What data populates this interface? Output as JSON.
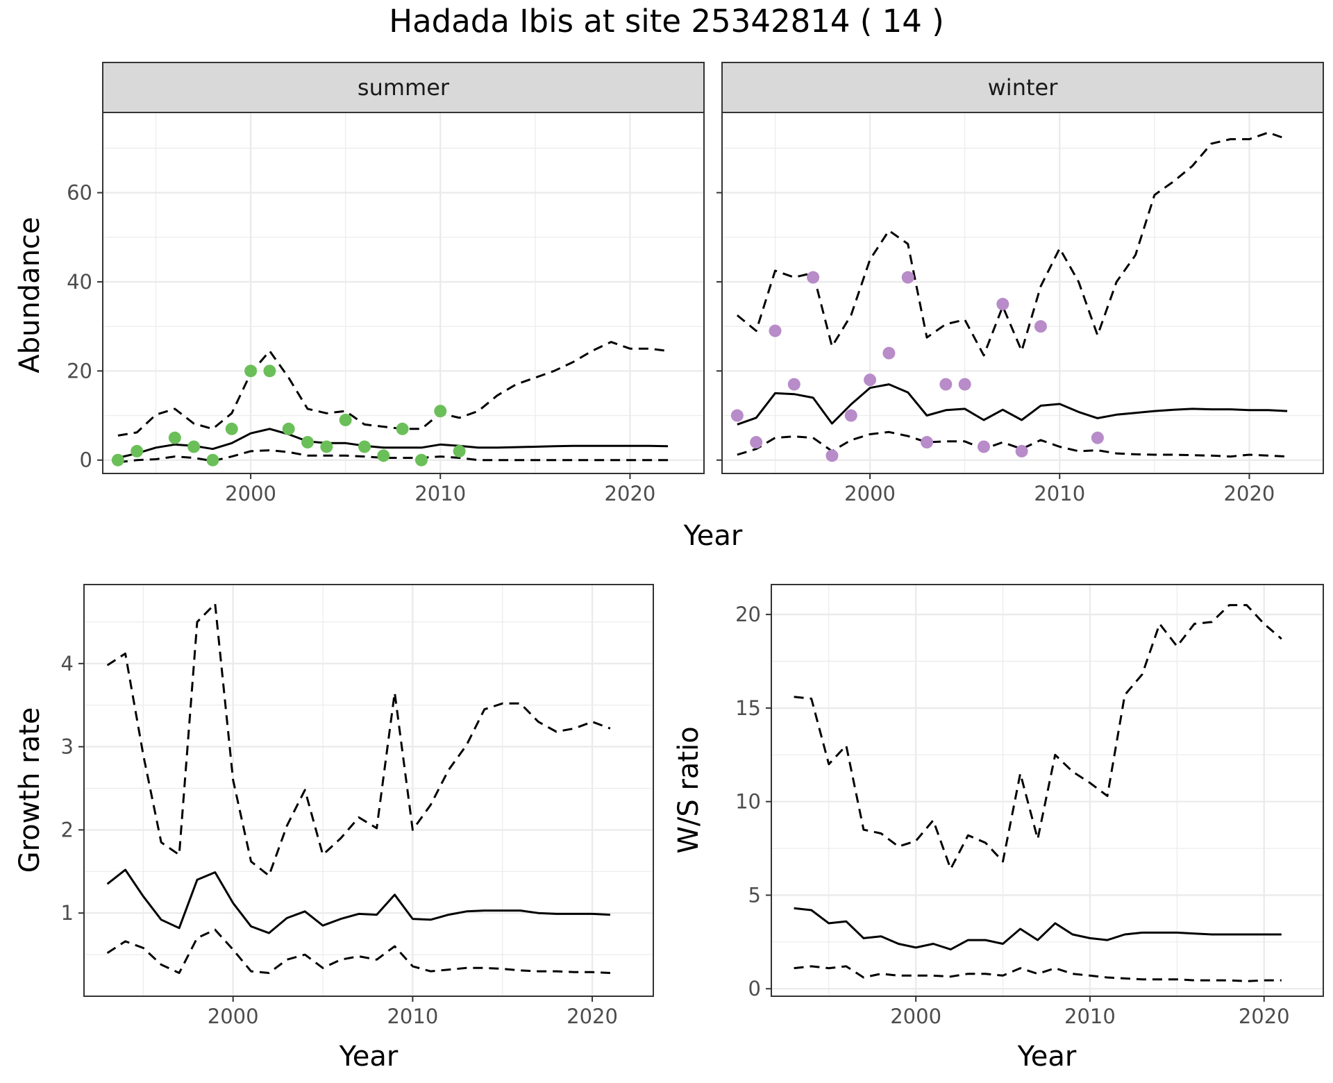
{
  "title": "Hadada Ibis at site 25342814 ( 14 )",
  "colors": {
    "summer_points": "#6BBF59",
    "winter_points": "#B88BC9",
    "line": "#000000",
    "strip_bg": "#D9D9D9",
    "grid": "#EBEBEB"
  },
  "chart_data": [
    {
      "id": "abundance-summer",
      "type": "line",
      "facet": "summer",
      "xlabel": "Year",
      "ylabel": "Abundance",
      "xlim": [
        1992.2,
        2023.9
      ],
      "ylim": [
        -3,
        78
      ],
      "xticks": [
        2000,
        2010,
        2020
      ],
      "yticks": [
        0,
        20,
        40,
        60
      ],
      "grid": true,
      "series": [
        {
          "style": "solid",
          "x": [
            1993,
            1994,
            1995,
            1996,
            1997,
            1998,
            1999,
            2000,
            2001,
            2002,
            2003,
            2004,
            2005,
            2006,
            2007,
            2008,
            2009,
            2010,
            2011,
            2012,
            2013,
            2014,
            2015,
            2016,
            2017,
            2018,
            2019,
            2020,
            2021,
            2022
          ],
          "y": [
            0.5,
            1.5,
            2.8,
            3.5,
            3.2,
            2.5,
            3.8,
            6,
            7,
            5.8,
            4.2,
            3.8,
            3.8,
            3.2,
            2.8,
            2.8,
            2.8,
            3.5,
            3.2,
            2.8,
            2.8,
            2.9,
            3,
            3.1,
            3.2,
            3.2,
            3.2,
            3.2,
            3.2,
            3.1
          ]
        },
        {
          "style": "dashed",
          "x": [
            1993,
            1994,
            1995,
            1996,
            1997,
            1998,
            1999,
            2000,
            2001,
            2002,
            2003,
            2004,
            2005,
            2006,
            2007,
            2008,
            2009,
            2010,
            2011,
            2012,
            2013,
            2014,
            2015,
            2016,
            2017,
            2018,
            2019,
            2020,
            2021,
            2022
          ],
          "y": [
            5.5,
            6.2,
            10.2,
            11.5,
            8.2,
            7,
            10.5,
            19.5,
            24.5,
            18.5,
            11.5,
            10.5,
            11,
            8,
            7.5,
            7,
            7,
            10.5,
            9.5,
            11,
            14.5,
            17,
            18.5,
            20,
            22,
            24.5,
            26.5,
            25,
            25,
            24.5
          ]
        },
        {
          "style": "dashed",
          "x": [
            1993,
            1994,
            1995,
            1996,
            1997,
            1998,
            1999,
            2000,
            2001,
            2002,
            2003,
            2004,
            2005,
            2006,
            2007,
            2008,
            2009,
            2010,
            2011,
            2012,
            2013,
            2014,
            2015,
            2016,
            2017,
            2018,
            2019,
            2020,
            2021,
            2022
          ],
          "y": [
            -0.5,
            0,
            0.2,
            0.8,
            0.5,
            -0.2,
            0.8,
            2,
            2.2,
            1.8,
            1,
            1,
            1,
            0.8,
            0.5,
            0.5,
            0.5,
            0.8,
            0.5,
            0,
            0,
            0,
            0,
            0,
            0,
            0,
            0,
            0,
            0,
            0
          ]
        },
        {
          "style": "points",
          "x": [
            1993,
            1994,
            1996,
            1997,
            1998,
            1999,
            2000,
            2001,
            2002,
            2003,
            2004,
            2005,
            2006,
            2007,
            2008,
            2009,
            2010,
            2011
          ],
          "y": [
            0,
            2,
            5,
            3,
            0,
            7,
            20,
            20,
            7,
            4,
            3,
            9,
            3,
            1,
            7,
            0,
            11,
            2
          ]
        }
      ]
    },
    {
      "id": "abundance-winter",
      "type": "line",
      "facet": "winter",
      "xlabel": "Year",
      "ylabel": "Abundance",
      "xlim": [
        1992.2,
        2023.9
      ],
      "ylim": [
        -3,
        78
      ],
      "xticks": [
        2000,
        2010,
        2020
      ],
      "yticks": [
        0,
        20,
        40,
        60
      ],
      "grid": true,
      "series": [
        {
          "style": "solid",
          "x": [
            1993,
            1994,
            1995,
            1996,
            1997,
            1998,
            1999,
            2000,
            2001,
            2002,
            2003,
            2004,
            2005,
            2006,
            2007,
            2008,
            2009,
            2010,
            2011,
            2012,
            2013,
            2014,
            2015,
            2016,
            2017,
            2018,
            2019,
            2020,
            2021,
            2022
          ],
          "y": [
            8,
            9.5,
            15,
            14.8,
            14,
            8.2,
            12.5,
            16.2,
            17,
            15.2,
            10,
            11.2,
            11.5,
            9,
            11.3,
            9,
            12.2,
            12.6,
            10.8,
            9.4,
            10.2,
            10.6,
            11,
            11.3,
            11.5,
            11.4,
            11.4,
            11.2,
            11.2,
            11
          ]
        },
        {
          "style": "dashed",
          "x": [
            1993,
            1994,
            1995,
            1996,
            1997,
            1998,
            1999,
            2000,
            2001,
            2002,
            2003,
            2004,
            2005,
            2006,
            2007,
            2008,
            2009,
            2010,
            2011,
            2012,
            2013,
            2014,
            2015,
            2016,
            2017,
            2018,
            2019,
            2020,
            2021,
            2022
          ],
          "y": [
            32.5,
            29,
            42.5,
            41,
            42,
            25.5,
            32.5,
            45,
            51.5,
            48.5,
            27.5,
            30.5,
            31.5,
            23.5,
            34.5,
            24.5,
            39,
            47.5,
            40,
            28,
            40,
            46,
            59.5,
            62.5,
            66,
            71,
            72,
            72,
            73.5,
            72
          ]
        },
        {
          "style": "dashed",
          "x": [
            1993,
            1994,
            1995,
            1996,
            1997,
            1998,
            1999,
            2000,
            2001,
            2002,
            2003,
            2004,
            2005,
            2006,
            2007,
            2008,
            2009,
            2010,
            2011,
            2012,
            2013,
            2014,
            2015,
            2016,
            2017,
            2018,
            2019,
            2020,
            2021,
            2022
          ],
          "y": [
            1.2,
            2.5,
            5,
            5.3,
            5,
            2,
            4.5,
            5.8,
            6.3,
            5.4,
            4,
            4.2,
            4.2,
            2.5,
            4,
            2.5,
            4.5,
            3,
            2,
            2.2,
            1.5,
            1.3,
            1.2,
            1.2,
            1.1,
            1,
            0.8,
            1.2,
            1,
            0.8
          ]
        },
        {
          "style": "points",
          "x": [
            1993,
            1994,
            1995,
            1996,
            1997,
            1998,
            1999,
            2000,
            2001,
            2002,
            2003,
            2004,
            2005,
            2006,
            2007,
            2008,
            2009,
            2012
          ],
          "y": [
            10,
            4,
            29,
            17,
            41,
            1,
            10,
            18,
            24,
            41,
            4,
            17,
            17,
            3,
            35,
            2,
            30,
            5
          ]
        }
      ]
    },
    {
      "id": "growth-rate",
      "type": "line",
      "xlabel": "Year",
      "ylabel": "Growth rate",
      "xlim": [
        1991.7,
        2023.4
      ],
      "ylim": [
        0.0,
        4.95
      ],
      "xticks": [
        2000,
        2010,
        2020
      ],
      "yticks": [
        1,
        2,
        3,
        4
      ],
      "grid": true,
      "series": [
        {
          "style": "solid",
          "x": [
            1993,
            1994,
            1995,
            1996,
            1997,
            1998,
            1999,
            2000,
            2001,
            2002,
            2003,
            2004,
            2005,
            2006,
            2007,
            2008,
            2009,
            2010,
            2011,
            2012,
            2013,
            2014,
            2015,
            2016,
            2017,
            2018,
            2019,
            2020,
            2021
          ],
          "y": [
            1.35,
            1.52,
            1.2,
            0.92,
            0.82,
            1.4,
            1.49,
            1.12,
            0.84,
            0.76,
            0.94,
            1.02,
            0.85,
            0.93,
            0.99,
            0.98,
            1.22,
            0.93,
            0.92,
            0.98,
            1.02,
            1.03,
            1.03,
            1.03,
            1,
            0.99,
            0.99,
            0.99,
            0.98
          ]
        },
        {
          "style": "dashed",
          "x": [
            1993,
            1994,
            1995,
            1996,
            1997,
            1998,
            1999,
            2000,
            2001,
            2002,
            2003,
            2004,
            2005,
            2006,
            2007,
            2008,
            2009,
            2010,
            2011,
            2012,
            2013,
            2014,
            2015,
            2016,
            2017,
            2018,
            2019,
            2020,
            2021
          ],
          "y": [
            3.98,
            4.12,
            2.9,
            1.85,
            1.7,
            4.5,
            4.72,
            2.6,
            1.62,
            1.45,
            2.05,
            2.48,
            1.7,
            1.9,
            2.15,
            2.02,
            3.65,
            2,
            2.3,
            2.72,
            3.02,
            3.45,
            3.52,
            3.52,
            3.3,
            3.18,
            3.22,
            3.3,
            3.22
          ]
        },
        {
          "style": "dashed",
          "x": [
            1993,
            1994,
            1995,
            1996,
            1997,
            1998,
            1999,
            2000,
            2001,
            2002,
            2003,
            2004,
            2005,
            2006,
            2007,
            2008,
            2009,
            2010,
            2011,
            2012,
            2013,
            2014,
            2015,
            2016,
            2017,
            2018,
            2019,
            2020,
            2021
          ],
          "y": [
            0.52,
            0.66,
            0.58,
            0.38,
            0.28,
            0.7,
            0.8,
            0.56,
            0.3,
            0.28,
            0.44,
            0.5,
            0.34,
            0.44,
            0.48,
            0.44,
            0.6,
            0.36,
            0.3,
            0.32,
            0.34,
            0.34,
            0.33,
            0.31,
            0.3,
            0.3,
            0.29,
            0.29,
            0.28
          ]
        }
      ]
    },
    {
      "id": "ws-ratio",
      "type": "line",
      "xlabel": "Year",
      "ylabel": "W/S ratio",
      "xlim": [
        1991.7,
        2023.4
      ],
      "ylim": [
        -0.4,
        21.6
      ],
      "xticks": [
        2000,
        2010,
        2020
      ],
      "yticks": [
        0,
        5,
        10,
        15,
        20
      ],
      "grid": true,
      "series": [
        {
          "style": "solid",
          "x": [
            1993,
            1994,
            1995,
            1996,
            1997,
            1998,
            1999,
            2000,
            2001,
            2002,
            2003,
            2004,
            2005,
            2006,
            2007,
            2008,
            2009,
            2010,
            2011,
            2012,
            2013,
            2014,
            2015,
            2016,
            2017,
            2018,
            2019,
            2020,
            2021
          ],
          "y": [
            4.3,
            4.2,
            3.5,
            3.6,
            2.7,
            2.8,
            2.4,
            2.2,
            2.4,
            2.1,
            2.6,
            2.6,
            2.4,
            3.2,
            2.6,
            3.5,
            2.9,
            2.7,
            2.6,
            2.9,
            3,
            3,
            3,
            2.95,
            2.9,
            2.9,
            2.9,
            2.9,
            2.9
          ]
        },
        {
          "style": "dashed",
          "x": [
            1993,
            1994,
            1995,
            1996,
            1997,
            1998,
            1999,
            2000,
            2001,
            2002,
            2003,
            2004,
            2005,
            2006,
            2007,
            2008,
            2009,
            2010,
            2011,
            2012,
            2013,
            2014,
            2015,
            2016,
            2017,
            2018,
            2019,
            2020,
            2021
          ],
          "y": [
            15.6,
            15.5,
            12,
            13,
            8.5,
            8.3,
            7.6,
            7.9,
            9,
            6.4,
            8.2,
            7.8,
            6.8,
            11.5,
            8,
            12.5,
            11.6,
            11,
            10.3,
            15.7,
            16.8,
            19.5,
            18.3,
            19.5,
            19.6,
            20.5,
            20.5,
            19.5,
            18.7
          ]
        },
        {
          "style": "dashed",
          "x": [
            1993,
            1994,
            1995,
            1996,
            1997,
            1998,
            1999,
            2000,
            2001,
            2002,
            2003,
            2004,
            2005,
            2006,
            2007,
            2008,
            2009,
            2010,
            2011,
            2012,
            2013,
            2014,
            2015,
            2016,
            2017,
            2018,
            2019,
            2020,
            2021
          ],
          "y": [
            1.1,
            1.2,
            1.1,
            1.2,
            0.6,
            0.8,
            0.7,
            0.7,
            0.7,
            0.65,
            0.8,
            0.8,
            0.7,
            1.1,
            0.8,
            1.1,
            0.8,
            0.7,
            0.6,
            0.55,
            0.5,
            0.5,
            0.5,
            0.45,
            0.45,
            0.45,
            0.4,
            0.45,
            0.45
          ]
        }
      ]
    }
  ]
}
